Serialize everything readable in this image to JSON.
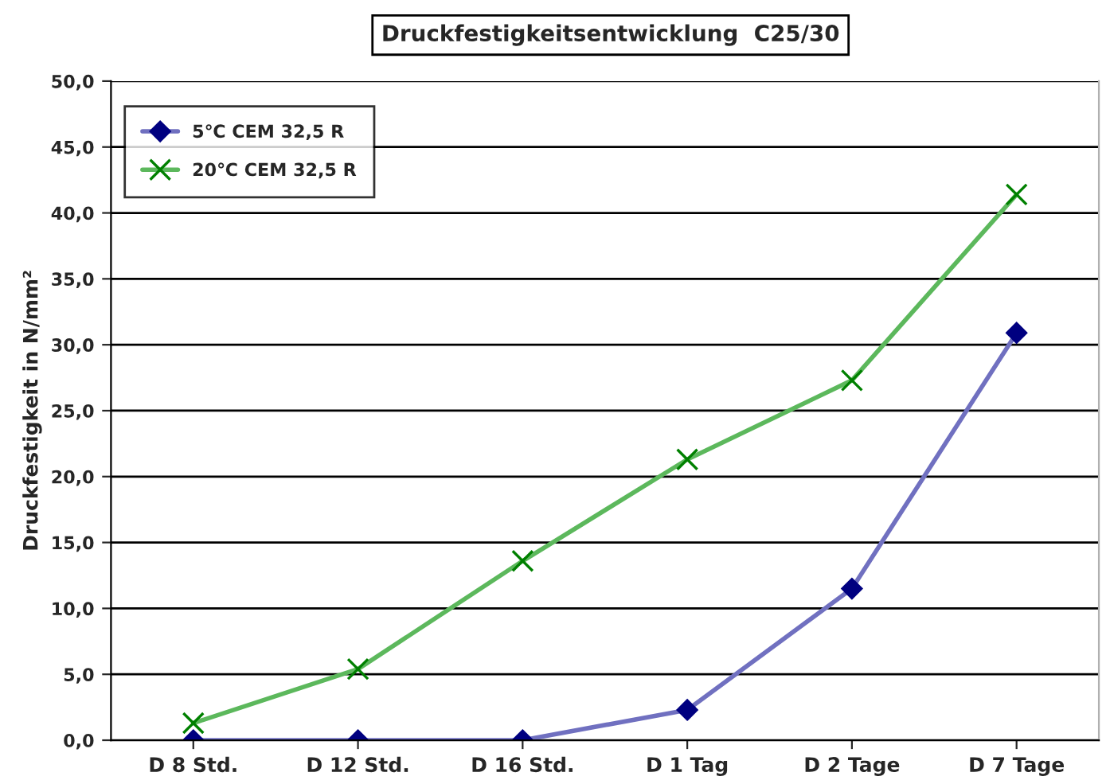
{
  "chart_data": {
    "type": "line",
    "title": "Druckfestigkeitsentwicklung  C25/30",
    "ylabel": "Druckfestigkeit in N/mm²",
    "categories": [
      "D 8 Std.",
      "D 12 Std.",
      "D 16 Std.",
      "D 1 Tag",
      "D 2 Tage",
      "D 7 Tage"
    ],
    "series": [
      {
        "name": "5℃ CEM 32,5 R",
        "color": "#7070c0",
        "marker": "diamond",
        "values": [
          0,
          0,
          0,
          2.3,
          11.5,
          30.9
        ]
      },
      {
        "name": "20℃ CEM 32,5 R",
        "color": "#5cb85c",
        "marker": "cross",
        "values": [
          1.3,
          5.4,
          13.6,
          21.3,
          27.3,
          41.4
        ]
      }
    ],
    "ylim": [
      0,
      50
    ],
    "yticks": [
      {
        "value": 0,
        "label": "0,0"
      },
      {
        "value": 5,
        "label": "5,0"
      },
      {
        "value": 10,
        "label": "10,0"
      },
      {
        "value": 15,
        "label": "15,0"
      },
      {
        "value": 20,
        "label": "20,0"
      },
      {
        "value": 25,
        "label": "25,0"
      },
      {
        "value": 30,
        "label": "30,0"
      },
      {
        "value": 35,
        "label": "35,0"
      },
      {
        "value": 40,
        "label": "40,0"
      },
      {
        "value": 45,
        "label": "45,0"
      },
      {
        "value": 50,
        "label": "50,0"
      }
    ],
    "grid": "y",
    "legend": "top left"
  }
}
